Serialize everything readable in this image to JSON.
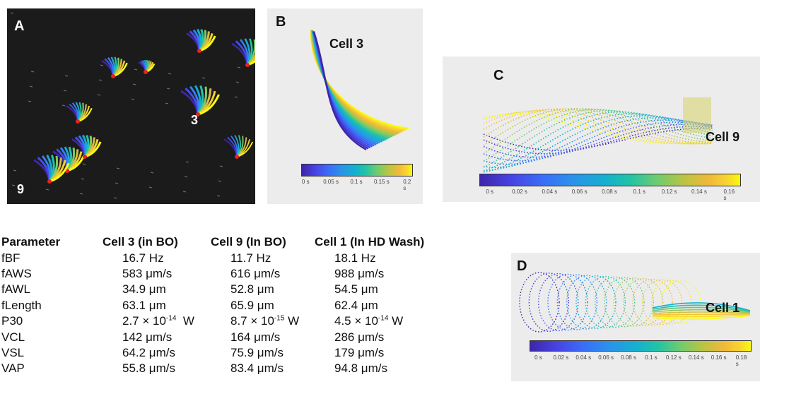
{
  "panel_a": {
    "label": "A",
    "cell_labels": [
      "3",
      "9"
    ]
  },
  "panel_b": {
    "label": "B",
    "cell_label": "Cell 3",
    "colorbar_ticks": [
      "0 s",
      "0.05 s",
      "0.1 s",
      "0.15 s",
      "0.2 s"
    ]
  },
  "panel_c": {
    "label": "C",
    "cell_label": "Cell 9",
    "colorbar_ticks": [
      "0 s",
      "0.02 s",
      "0.04 s",
      "0.06 s",
      "0.08 s",
      "0.1 s",
      "0.12 s",
      "0.14 s",
      "0.16 s"
    ]
  },
  "panel_d": {
    "label": "D",
    "cell_label": "Cell 1",
    "colorbar_ticks": [
      "0 s",
      "0.02 s",
      "0.04 s",
      "0.06 s",
      "0.08 s",
      "0.1 s",
      "0.12 s",
      "0.14 s",
      "0.16 s",
      "0.18 s"
    ]
  },
  "table": {
    "headers": [
      "Parameter",
      "Cell 3 (in BO)",
      "Cell 9 (In BO)",
      "Cell 1 (In HD Wash)"
    ],
    "rows": [
      [
        "fBF",
        "16.7 Hz",
        "11.7 Hz",
        "18.1 Hz"
      ],
      [
        "fAWS",
        "583 μm/s",
        "616 μm/s",
        "988 μm/s"
      ],
      [
        "fAWL",
        "34.9 μm",
        "52.8 μm",
        "54.5 μm"
      ],
      [
        "fLength",
        "63.1 μm",
        "65.9 μm",
        "62.4 μm"
      ],
      [
        "P30",
        "2.7 × 10",
        "8.7 × 10",
        "4.5 × 10"
      ],
      [
        "VCL",
        "142 μm/s",
        "164 μm/s",
        "286 μm/s"
      ],
      [
        "VSL",
        "64.2 μm/s",
        "75.9 μm/s",
        "179 μm/s"
      ],
      [
        "VAP",
        "55.8 μm/s",
        "83.4 μm/s",
        "94.8 μm/s"
      ]
    ],
    "p30_exponents": [
      "-14",
      "-15",
      "-14"
    ],
    "p30_unit": "W"
  },
  "colors": {
    "gradient": [
      "#3e26a8",
      "#4743e3",
      "#3a6df8",
      "#2a93e9",
      "#14b0cf",
      "#23c3a5",
      "#6fcb70",
      "#b8c444",
      "#f0b93a",
      "#f8d52f",
      "#f9fb0e"
    ],
    "head": "#e8231c"
  }
}
